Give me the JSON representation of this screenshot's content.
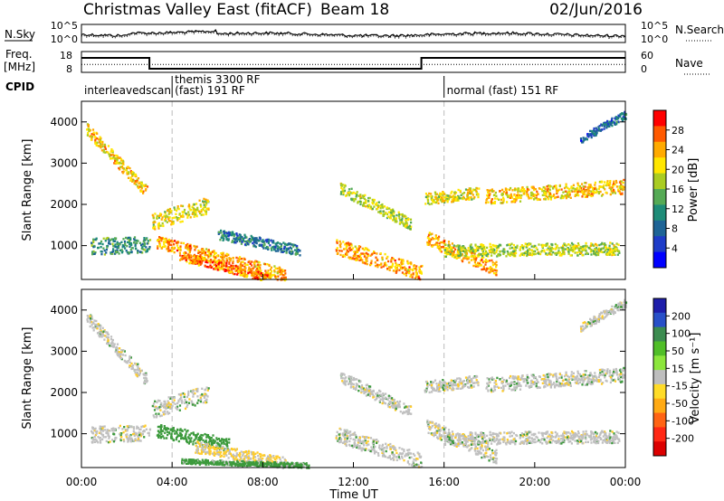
{
  "header": {
    "title": "Christmas Valley East (fitACF)",
    "beam": "Beam 18",
    "date": "02/Jun/2016"
  },
  "noise_panel": {
    "left_label": "N.Sky",
    "right_label": "N.Search",
    "left_ticks": [
      "10^5",
      "10^0"
    ],
    "right_ticks": [
      "10^5",
      "10^0"
    ]
  },
  "freq_panel": {
    "left_label_1": "Freq.",
    "left_label_2": "[MHz]",
    "right_label": "Nave",
    "left_ticks": [
      "18",
      "8"
    ],
    "right_ticks": [
      "60",
      "0"
    ]
  },
  "cpid": {
    "label": "CPID",
    "entries": [
      {
        "text": "interleavedscan",
        "start_h": 0,
        "row": "low"
      },
      {
        "text": "themis 3300 RF",
        "start_h": 4,
        "row": "high"
      },
      {
        "text": "(fast) 191 RF",
        "start_h": 4,
        "row": "low"
      },
      {
        "text": "normal (fast) 151 RF",
        "start_h": 16,
        "row": "low"
      }
    ],
    "boundaries_h": [
      4,
      16
    ]
  },
  "axes": {
    "time_ticks": [
      "00:00",
      "04:00",
      "08:00",
      "12:00",
      "16:00",
      "20:00",
      "00:00"
    ],
    "xlabel": "Time UT",
    "ylabel": "Slant Range [km]",
    "range_ticks": [
      "1000",
      "2000",
      "3000",
      "4000"
    ]
  },
  "colorbars": {
    "power": {
      "label": "Power [dB]",
      "ticks": [
        "28",
        "24",
        "20",
        "16",
        "12",
        "8",
        "4"
      ],
      "colors": [
        "#ff0000",
        "#ff5a00",
        "#ffaa00",
        "#ffe600",
        "#aacc22",
        "#55aa55",
        "#1e8c78",
        "#1e6496",
        "#1e3cc8",
        "#0000ff"
      ]
    },
    "velocity": {
      "label": "Velocity [m s⁻¹]",
      "ticks": [
        "200",
        "100",
        "50",
        "15",
        "-15",
        "-50",
        "-100",
        "-200"
      ],
      "colors": [
        "#1e1eaa",
        "#2850c8",
        "#3c8c50",
        "#50be28",
        "#8ce63c",
        "#bebebe",
        "#ffdc28",
        "#ffaa14",
        "#ff6414",
        "#ff2814",
        "#dc0000"
      ]
    }
  },
  "chart_data": {
    "type": "heatmap",
    "x_range_h": [
      0,
      24
    ],
    "y_range_km": [
      180,
      4500
    ],
    "frequency_mhz": [
      {
        "from_h": 0,
        "to_h": 3,
        "value": 16
      },
      {
        "from_h": 3,
        "to_h": 15,
        "value": 10
      },
      {
        "from_h": 15,
        "to_h": 24,
        "value": 16
      }
    ],
    "nave_level": 23,
    "power_regions": [
      {
        "t0": 0.2,
        "t1": 2.9,
        "r0": 3850,
        "r1": 2300,
        "th": 300,
        "dB": 22
      },
      {
        "t0": 0.4,
        "t1": 3.0,
        "r0": 1000,
        "r1": 1050,
        "th": 400,
        "dB": 12
      },
      {
        "t0": 3.1,
        "t1": 5.6,
        "r0": 1600,
        "r1": 2000,
        "th": 400,
        "dB": 20
      },
      {
        "t0": 3.3,
        "t1": 9.0,
        "r0": 1100,
        "r1": 300,
        "th": 320,
        "dB": 24
      },
      {
        "t0": 4.3,
        "t1": 8.2,
        "r0": 750,
        "r1": 250,
        "th": 220,
        "dB": 26
      },
      {
        "t0": 6.0,
        "t1": 9.6,
        "r0": 1300,
        "r1": 900,
        "th": 250,
        "dB": 10
      },
      {
        "t0": 11.4,
        "t1": 14.5,
        "r0": 2400,
        "r1": 1550,
        "th": 280,
        "dB": 18
      },
      {
        "t0": 11.2,
        "t1": 15.0,
        "r0": 1000,
        "r1": 350,
        "th": 380,
        "dB": 24
      },
      {
        "t0": 15.2,
        "t1": 18.3,
        "r0": 1200,
        "r1": 450,
        "th": 350,
        "dB": 24
      },
      {
        "t0": 15.1,
        "t1": 17.5,
        "r0": 2150,
        "r1": 2300,
        "th": 280,
        "dB": 20
      },
      {
        "t0": 17.8,
        "t1": 23.9,
        "r0": 2200,
        "r1": 2450,
        "th": 350,
        "dB": 22
      },
      {
        "t0": 16.0,
        "t1": 23.7,
        "r0": 900,
        "r1": 950,
        "th": 300,
        "dB": 18
      },
      {
        "t0": 22.0,
        "t1": 24.0,
        "r0": 3600,
        "r1": 4200,
        "th": 200,
        "dB": 8
      }
    ],
    "velocity_regions": [
      {
        "t0": 0.2,
        "t1": 2.9,
        "r0": 3850,
        "r1": 2300,
        "th": 300,
        "v": 0
      },
      {
        "t0": 0.4,
        "t1": 3.0,
        "r0": 1000,
        "r1": 1050,
        "th": 400,
        "v": 0
      },
      {
        "t0": 3.1,
        "t1": 5.6,
        "r0": 1600,
        "r1": 2000,
        "th": 400,
        "v": 0
      },
      {
        "t0": 3.3,
        "t1": 6.5,
        "r0": 1100,
        "r1": 750,
        "th": 320,
        "v": 40
      },
      {
        "t0": 5.0,
        "t1": 9.0,
        "r0": 700,
        "r1": 300,
        "th": 280,
        "v": -20
      },
      {
        "t0": 4.3,
        "t1": 10.0,
        "r0": 350,
        "r1": 250,
        "th": 120,
        "v": 30
      },
      {
        "t0": 11.4,
        "t1": 14.5,
        "r0": 2400,
        "r1": 1550,
        "th": 280,
        "v": 0
      },
      {
        "t0": 11.2,
        "t1": 15.0,
        "r0": 1000,
        "r1": 350,
        "th": 380,
        "v": 0
      },
      {
        "t0": 15.2,
        "t1": 18.3,
        "r0": 1200,
        "r1": 450,
        "th": 350,
        "v": 0
      },
      {
        "t0": 15.1,
        "t1": 17.5,
        "r0": 2150,
        "r1": 2300,
        "th": 280,
        "v": 0
      },
      {
        "t0": 17.8,
        "t1": 23.9,
        "r0": 2200,
        "r1": 2450,
        "th": 350,
        "v": 0
      },
      {
        "t0": 16.0,
        "t1": 23.7,
        "r0": 900,
        "r1": 950,
        "th": 300,
        "v": 0
      },
      {
        "t0": 22.0,
        "t1": 24.0,
        "r0": 3600,
        "r1": 4200,
        "th": 200,
        "v": 0
      }
    ]
  }
}
